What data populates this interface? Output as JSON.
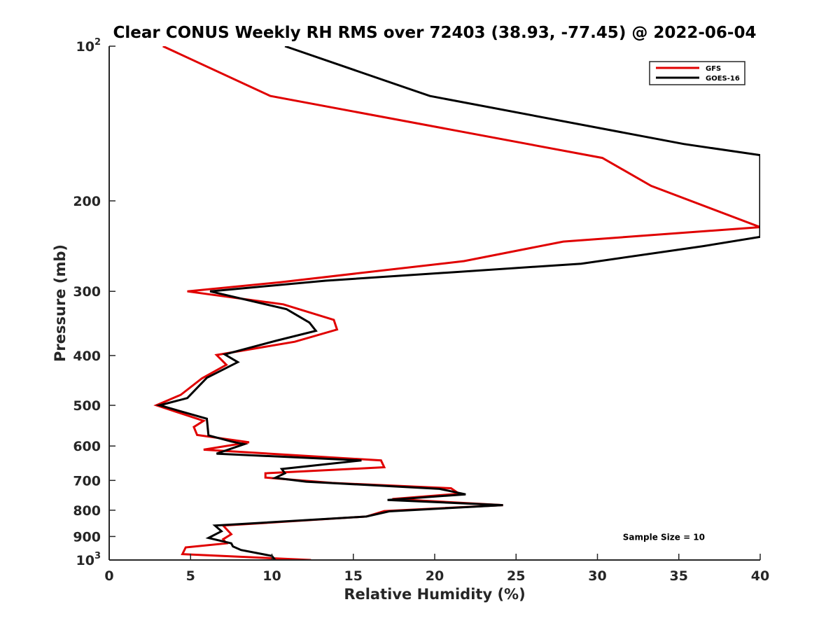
{
  "chart_data": {
    "type": "line",
    "title": "Clear CONUS Weekly RH RMS over 72403 (38.93, -77.45) @ 2022-06-04",
    "xlabel": "Relative Humidity (%)",
    "ylabel": "Pressure (mb)",
    "xlim": [
      0,
      40
    ],
    "ylim": [
      100,
      1000
    ],
    "yscale": "log",
    "yreversed": true,
    "grid": false,
    "legend_position": "top-right",
    "xticks": [
      {
        "value": 0,
        "label": "0"
      },
      {
        "value": 5,
        "label": "5"
      },
      {
        "value": 10,
        "label": "10"
      },
      {
        "value": 15,
        "label": "15"
      },
      {
        "value": 20,
        "label": "20"
      },
      {
        "value": 25,
        "label": "25"
      },
      {
        "value": 30,
        "label": "30"
      },
      {
        "value": 35,
        "label": "35"
      },
      {
        "value": 40,
        "label": "40"
      }
    ],
    "yticks": [
      {
        "value": 100,
        "base": "10",
        "exp": "2"
      },
      {
        "value": 200,
        "label": "200"
      },
      {
        "value": 300,
        "label": "300"
      },
      {
        "value": 400,
        "label": "400"
      },
      {
        "value": 500,
        "label": "500"
      },
      {
        "value": 600,
        "label": "600"
      },
      {
        "value": 700,
        "label": "700"
      },
      {
        "value": 800,
        "label": "800"
      },
      {
        "value": 900,
        "label": "900"
      },
      {
        "value": 1000,
        "base": "10",
        "exp": "3"
      }
    ],
    "series": [
      {
        "name": "GFS",
        "color": "#e00000",
        "points": [
          [
            3.3,
            100
          ],
          [
            9.9,
            125
          ],
          [
            30.3,
            165
          ],
          [
            33.3,
            187
          ],
          [
            40.0,
            225
          ],
          [
            27.9,
            240
          ],
          [
            21.8,
            262
          ],
          [
            10.5,
            288
          ],
          [
            4.8,
            300
          ],
          [
            10.7,
            318
          ],
          [
            13.8,
            341
          ],
          [
            14.0,
            356
          ],
          [
            11.4,
            376
          ],
          [
            6.6,
            399
          ],
          [
            7.2,
            417
          ],
          [
            5.7,
            443
          ],
          [
            4.4,
            477
          ],
          [
            2.9,
            500
          ],
          [
            5.8,
            536
          ],
          [
            5.2,
            551
          ],
          [
            5.4,
            571
          ],
          [
            8.6,
            590
          ],
          [
            5.8,
            610
          ],
          [
            16.7,
            640
          ],
          [
            16.9,
            660
          ],
          [
            9.6,
            678
          ],
          [
            9.6,
            691
          ],
          [
            13.7,
            708
          ],
          [
            21.0,
            725
          ],
          [
            21.5,
            743
          ],
          [
            17.4,
            761
          ],
          [
            24.2,
            782
          ],
          [
            16.9,
            803
          ],
          [
            15.8,
            823
          ],
          [
            7.0,
            857
          ],
          [
            7.5,
            891
          ],
          [
            7.0,
            911
          ],
          [
            7.2,
            928
          ],
          [
            4.7,
            945
          ],
          [
            4.5,
            974
          ],
          [
            12.4,
            1000
          ]
        ]
      },
      {
        "name": "GOES-16",
        "color": "#000000",
        "points": [
          [
            10.8,
            100
          ],
          [
            19.7,
            125
          ],
          [
            35.3,
            155
          ],
          [
            40.0,
            163
          ],
          [
            40.0,
            235
          ],
          [
            36.5,
            245
          ],
          [
            29.0,
            265
          ],
          [
            13.3,
            286
          ],
          [
            6.2,
            300
          ],
          [
            10.9,
            325
          ],
          [
            12.3,
            345
          ],
          [
            12.7,
            358
          ],
          [
            10.3,
            374
          ],
          [
            7.1,
            398
          ],
          [
            7.9,
            412
          ],
          [
            6.0,
            442
          ],
          [
            4.8,
            484
          ],
          [
            3.1,
            500
          ],
          [
            6.0,
            531
          ],
          [
            6.1,
            572
          ],
          [
            7.5,
            588
          ],
          [
            8.3,
            595
          ],
          [
            6.6,
            621
          ],
          [
            15.5,
            640
          ],
          [
            10.6,
            665
          ],
          [
            10.8,
            678
          ],
          [
            10.2,
            692
          ],
          [
            12.1,
            704
          ],
          [
            20.3,
            727
          ],
          [
            21.9,
            745
          ],
          [
            17.1,
            764
          ],
          [
            24.2,
            782
          ],
          [
            17.2,
            804
          ],
          [
            15.8,
            823
          ],
          [
            6.5,
            857
          ],
          [
            6.9,
            879
          ],
          [
            6.1,
            906
          ],
          [
            7.5,
            928
          ],
          [
            7.6,
            941
          ],
          [
            8.1,
            956
          ],
          [
            10.0,
            982
          ],
          [
            10.2,
            1000
          ]
        ]
      }
    ],
    "annotations": [
      {
        "text": "Sample Size = 10",
        "x": 35,
        "y": 900
      }
    ]
  }
}
